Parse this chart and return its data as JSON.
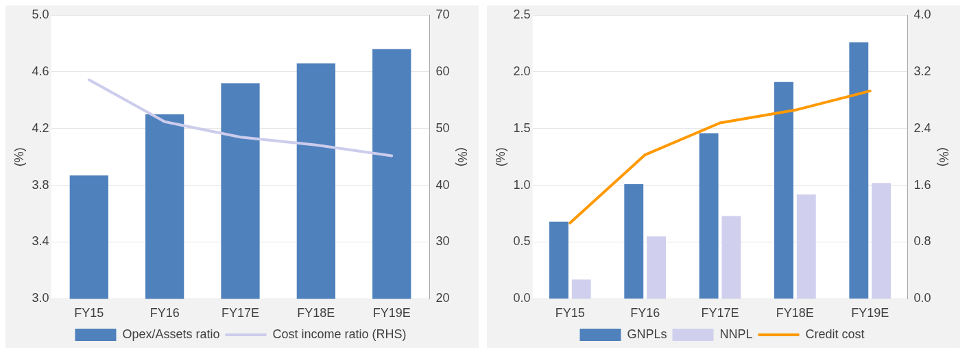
{
  "chart_data": [
    {
      "type": "bar",
      "categories": [
        "FY15",
        "FY16",
        "FY17E",
        "FY18E",
        "FY19E"
      ],
      "ylabel": "(%)",
      "y2label": "(%)",
      "series": [
        {
          "name": "Opex/Assets ratio",
          "color": "#4f81bd",
          "values": [
            3.87,
            4.3,
            4.52,
            4.66,
            4.76
          ]
        },
        {
          "name": "Cost income ratio (RHS)",
          "type": "line",
          "axis": "y2",
          "color": "#ccccec",
          "values": [
            58.6,
            51.2,
            48.5,
            47.1,
            45.2
          ]
        }
      ],
      "ylim": [
        3.0,
        5.0
      ],
      "yticks": [
        {
          "value": 3,
          "label": "3.0"
        },
        3.4,
        3.8,
        4.2,
        4.6,
        {
          "value": 5,
          "label": "5.0"
        }
      ],
      "y2lim": [
        20,
        70
      ],
      "y2ticks": [
        20,
        30,
        40,
        50,
        60,
        70
      ],
      "grid": "y",
      "legend": "bottom",
      "marker": "none"
    },
    {
      "type": "bar",
      "categories": [
        "FY15",
        "FY16",
        "FY17E",
        "FY18E",
        "FY19E"
      ],
      "ylabel": "(%)",
      "y2label": "(%)",
      "series": [
        {
          "name": "GNPLs",
          "color": "#4f81bd",
          "values": [
            0.68,
            1.01,
            1.46,
            1.91,
            2.26
          ]
        },
        {
          "name": "NNPL",
          "color": "#d0d0ee",
          "values": [
            0.17,
            0.55,
            0.73,
            0.92,
            1.02
          ]
        },
        {
          "name": "Credit cost",
          "type": "line",
          "axis": "y2",
          "color": "#ff9900",
          "values": [
            1.07,
            2.03,
            2.48,
            2.66,
            2.93
          ]
        }
      ],
      "ylim": [
        0,
        2.5
      ],
      "yticks": [
        {
          "value": 0,
          "label": "0.0"
        },
        0.5,
        {
          "value": 1,
          "label": "1.0"
        },
        1.5,
        {
          "value": 2,
          "label": "2.0"
        },
        2.5
      ],
      "y2lim": [
        0,
        4.0
      ],
      "y2ticks": [
        {
          "value": 0,
          "label": "0.0"
        },
        0.8,
        1.6,
        2.4,
        3.2,
        {
          "value": 4,
          "label": "4.0"
        }
      ],
      "grid": "y",
      "legend": "bottom",
      "marker": "none"
    }
  ]
}
